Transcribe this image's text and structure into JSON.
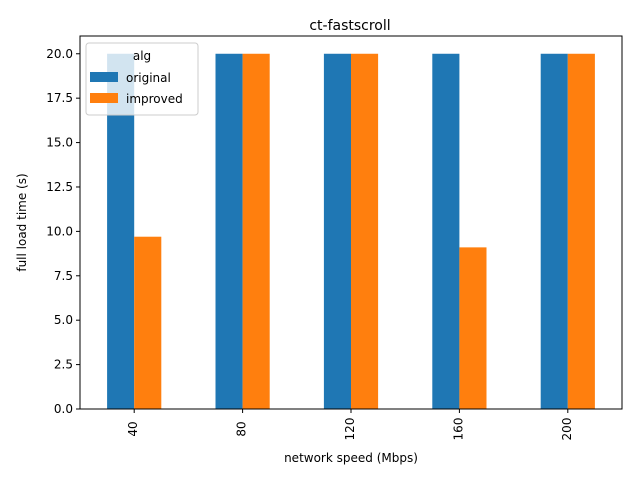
{
  "chart_data": {
    "type": "bar",
    "title": "ct-fastscroll",
    "xlabel": "network speed (Mbps)",
    "ylabel": "full load time (s)",
    "categories": [
      "40",
      "80",
      "120",
      "160",
      "200"
    ],
    "series": [
      {
        "name": "original",
        "color": "#1f77b4",
        "values": [
          20.0,
          20.0,
          20.0,
          20.0,
          20.0
        ]
      },
      {
        "name": "improved",
        "color": "#ff7f0e",
        "values": [
          9.7,
          20.0,
          20.0,
          9.1,
          20.0
        ]
      }
    ],
    "ylim": [
      0,
      21
    ],
    "yticks": [
      "0.0",
      "2.5",
      "5.0",
      "7.5",
      "10.0",
      "12.5",
      "15.0",
      "17.5",
      "20.0"
    ],
    "grid": false,
    "legend": {
      "title": "alg",
      "placement": "top-left"
    }
  }
}
